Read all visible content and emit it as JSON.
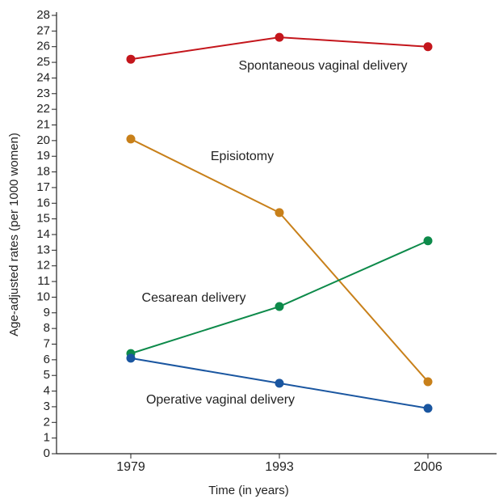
{
  "chart_data": {
    "type": "line",
    "x_label": "Time (in years)",
    "y_label": "Age-adjusted rates (per 1000 women)",
    "categories": [
      "1979",
      "1993",
      "2006"
    ],
    "series": [
      {
        "name": "Spontaneous vaginal delivery",
        "color": "#c4161c",
        "values": [
          25.2,
          26.6,
          26.0
        ]
      },
      {
        "name": "Episiotomy",
        "color": "#c8801a",
        "values": [
          20.1,
          15.4,
          4.6
        ]
      },
      {
        "name": "Cesarean delivery",
        "color": "#0d8a4a",
        "values": [
          6.4,
          9.4,
          13.6
        ]
      },
      {
        "name": "Operative vaginal delivery",
        "color": "#1a56a0",
        "values": [
          6.1,
          4.5,
          2.9
        ]
      }
    ],
    "ylim": [
      0,
      28
    ],
    "yticks": [
      0,
      1,
      2,
      3,
      4,
      5,
      6,
      7,
      8,
      9,
      10,
      11,
      12,
      13,
      14,
      15,
      16,
      17,
      18,
      19,
      20,
      21,
      22,
      23,
      24,
      25,
      26,
      27,
      28
    ]
  }
}
